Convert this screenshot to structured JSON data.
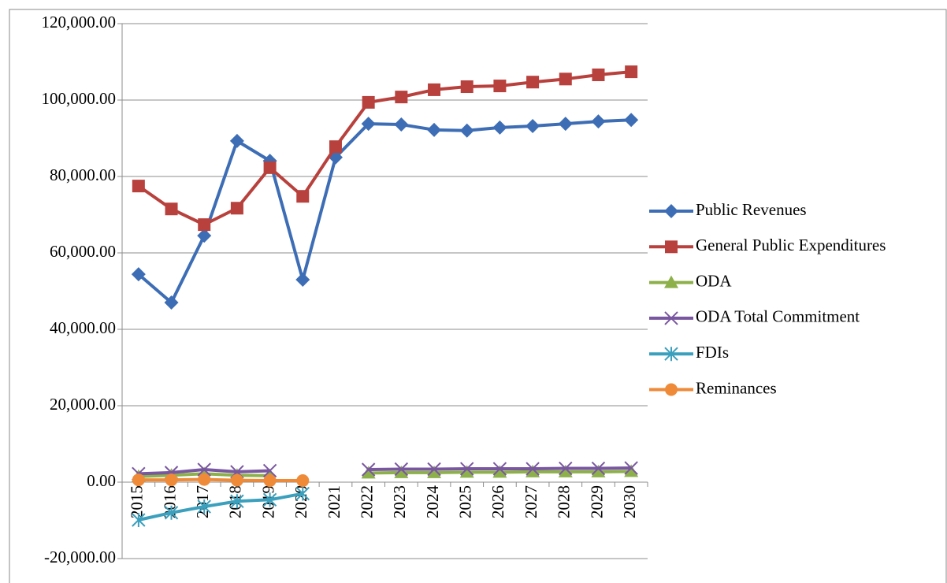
{
  "chart_data": {
    "type": "line",
    "categories": [
      "2015",
      "2016",
      "2017",
      "2018",
      "2019",
      "2020",
      "2021",
      "2022",
      "2023",
      "2024",
      "2025",
      "2026",
      "2027",
      "2028",
      "2029",
      "2030"
    ],
    "series": [
      {
        "name": "Public Revenues",
        "color": "#3d6db5",
        "marker": "diamond",
        "values": [
          54400,
          47000,
          64500,
          89300,
          84100,
          53000,
          85000,
          93800,
          93600,
          92200,
          92000,
          92800,
          93200,
          93800,
          94400,
          94800
        ]
      },
      {
        "name": "General Public Expenditures",
        "color": "#b8413d",
        "marker": "square",
        "values": [
          77500,
          71500,
          67400,
          71700,
          82300,
          74800,
          87800,
          99400,
          100800,
          102700,
          103500,
          103700,
          104700,
          105500,
          106600,
          107400
        ]
      },
      {
        "name": "ODA",
        "color": "#8db04a",
        "marker": "triangle",
        "values": [
          1500,
          1800,
          2200,
          1800,
          1700,
          null,
          null,
          2400,
          2500,
          2500,
          2600,
          2600,
          2700,
          2700,
          2700,
          2800
        ]
      },
      {
        "name": "ODA Total Commitment",
        "color": "#7957a0",
        "marker": "x",
        "values": [
          2200,
          2500,
          3300,
          2700,
          3000,
          null,
          null,
          3300,
          3400,
          3400,
          3500,
          3500,
          3500,
          3600,
          3600,
          3700
        ]
      },
      {
        "name": "FDIs",
        "color": "#3ba0bd",
        "marker": "star",
        "values": [
          -9900,
          -8000,
          -6400,
          -5000,
          -4600,
          -3000,
          null,
          null,
          null,
          null,
          null,
          null,
          null,
          null,
          null,
          null
        ]
      },
      {
        "name": "Reminances",
        "color": "#ee8a38",
        "marker": "circle",
        "values": [
          600,
          600,
          700,
          500,
          400,
          400,
          null,
          null,
          null,
          null,
          null,
          null,
          null,
          null,
          null,
          null
        ]
      }
    ],
    "ylim": [
      -20000,
      120000
    ],
    "yticks": [
      {
        "value": -20000,
        "label": "-20,000.00"
      },
      {
        "value": 0,
        "label": "0.00"
      },
      {
        "value": 20000,
        "label": "20,000.00"
      },
      {
        "value": 40000,
        "label": "40,000.00"
      },
      {
        "value": 60000,
        "label": "60,000.00"
      },
      {
        "value": 80000,
        "label": "80,000.00"
      },
      {
        "value": 100000,
        "label": "100,000.00"
      },
      {
        "value": 120000,
        "label": "120,000.00"
      }
    ],
    "grid": true,
    "legend": "right"
  }
}
